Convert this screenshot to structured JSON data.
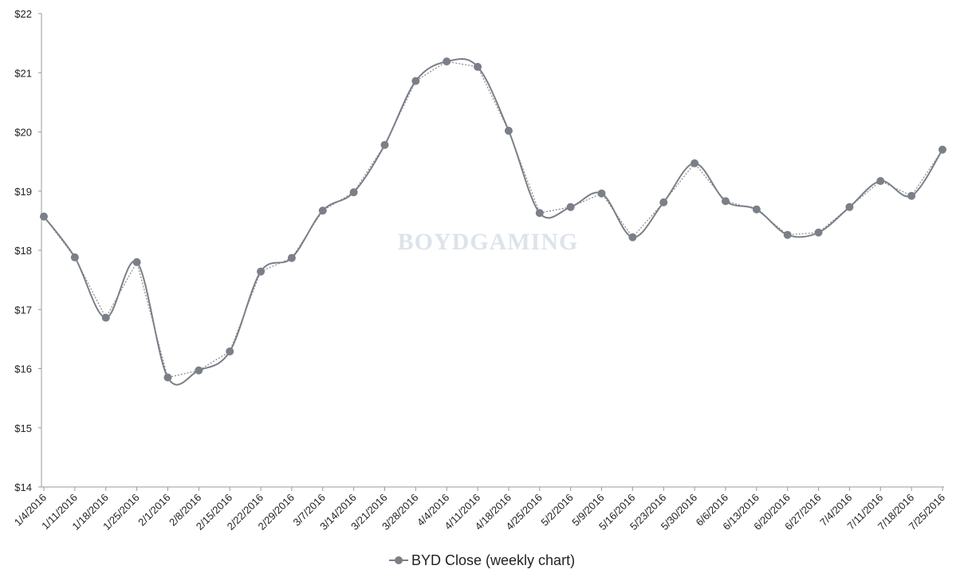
{
  "chart_data": {
    "type": "line",
    "watermark": "BOYDGAMING",
    "categories": [
      "1/4/2016",
      "1/11/2016",
      "1/18/2016",
      "1/25/2016",
      "2/1/2016",
      "2/8/2016",
      "2/15/2016",
      "2/22/2016",
      "2/29/2016",
      "3/7/2016",
      "3/14/2016",
      "3/21/2016",
      "3/28/2016",
      "4/4/2016",
      "4/11/2016",
      "4/18/2016",
      "4/25/2016",
      "5/2/2016",
      "5/9/2016",
      "5/16/2016",
      "5/23/2016",
      "5/30/2016",
      "6/6/2016",
      "6/13/2016",
      "6/20/2016",
      "6/27/2016",
      "7/4/2016",
      "7/11/2016",
      "7/18/2016",
      "7/25/2016"
    ],
    "series": [
      {
        "name": "BYD Close (weekly chart)",
        "color": "#7a7f88",
        "values": [
          18.57,
          17.88,
          16.86,
          17.8,
          15.85,
          15.97,
          16.29,
          17.64,
          17.87,
          18.67,
          18.98,
          19.78,
          20.86,
          21.19,
          21.1,
          20.02,
          18.63,
          18.73,
          18.96,
          18.22,
          18.81,
          19.47,
          18.83,
          18.69,
          18.26,
          18.3,
          18.73,
          19.17,
          18.92,
          19.7
        ]
      }
    ],
    "ylim": [
      14,
      22
    ],
    "yticks": [
      {
        "value": 14,
        "label": "$14"
      },
      {
        "value": 15,
        "label": "$15"
      },
      {
        "value": 16,
        "label": "$16"
      },
      {
        "value": 17,
        "label": "$17"
      },
      {
        "value": 18,
        "label": "$18"
      },
      {
        "value": 19,
        "label": "$19"
      },
      {
        "value": 20,
        "label": "$20"
      },
      {
        "value": 21,
        "label": "$21"
      },
      {
        "value": 22,
        "label": "$22"
      }
    ],
    "grid": false
  }
}
